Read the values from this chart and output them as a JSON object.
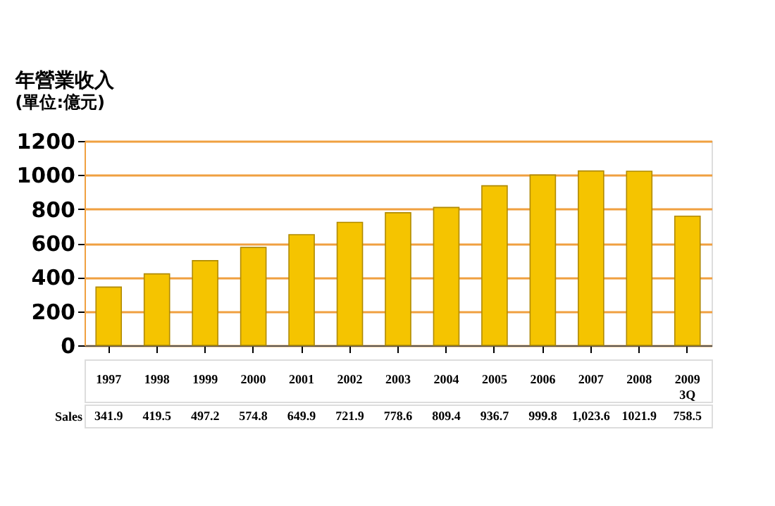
{
  "chart_data": {
    "type": "bar",
    "title": "年營業收入",
    "subtitle": "(單位:億元)",
    "categories": [
      "1997",
      "1998",
      "1999",
      "2000",
      "2001",
      "2002",
      "2003",
      "2004",
      "2005",
      "2006",
      "2007",
      "2008",
      "2009 3Q"
    ],
    "series": [
      {
        "name": "Sales",
        "color": "#f5c400",
        "values": [
          341.9,
          419.5,
          497.2,
          574.8,
          649.9,
          721.9,
          778.6,
          809.4,
          936.7,
          999.8,
          1023.6,
          1021.9,
          758.5
        ],
        "value_labels": [
          "341.9",
          "419.5",
          "497.2",
          "574.8",
          "649.9",
          "721.9",
          "778.6",
          "809.4",
          "936.7",
          "999.8",
          "1,023.6",
          "1021.9",
          "758.5"
        ]
      }
    ],
    "ylim": [
      0,
      1200
    ],
    "yticks": [
      0,
      200,
      400,
      600,
      800,
      1000,
      1200
    ],
    "grid": "y",
    "legend": false
  }
}
